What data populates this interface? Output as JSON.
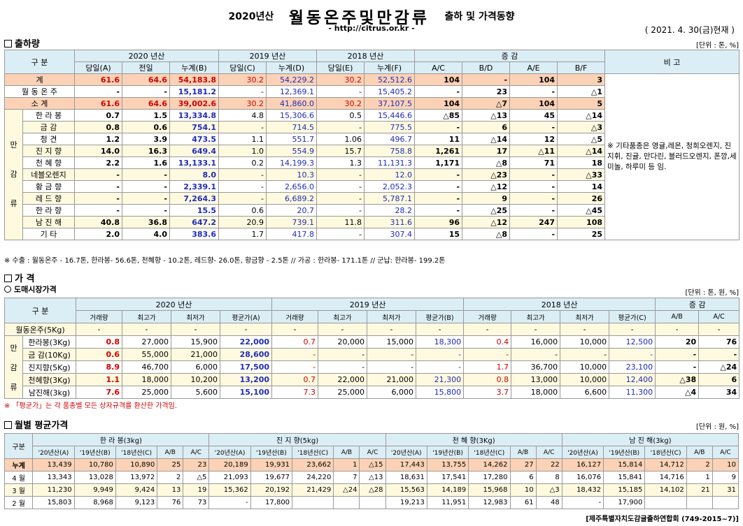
{
  "header": {
    "year": "2020년산",
    "title": "월동온주및만감류",
    "subtitle": "출하 및 가격동향",
    "url": "- http://citrus.or.kr -",
    "date": "( 2021. 4. 30(금)현재 )"
  },
  "shipment": {
    "section": "출하량",
    "unit": "[단위 : 톤, %]",
    "head1": [
      "구 분",
      "2020 년산",
      "2019 년산",
      "2018 년산",
      "증 감",
      "비 고"
    ],
    "head2": [
      "당일(A)",
      "전일",
      "누계(B)",
      "당일(C)",
      "누계(D)",
      "당일(E)",
      "누계(F)",
      "A/C",
      "B/D",
      "A/E",
      "B/F"
    ],
    "group_label": [
      "만",
      "감",
      "류"
    ],
    "remark": "※ 기타품종은 영귤,레몬, 청희오렌지, 진지휘, 진귤, 만다린, 블러드오렌지, 폰깡,세미놀, 하루미 등 임.",
    "rows": [
      {
        "name": "계",
        "cells": [
          "61.6",
          "64.6",
          "54,183.8",
          "30.2",
          "54,229.2",
          "30.2",
          "52,512.6",
          "104",
          "-",
          "104",
          "3"
        ]
      },
      {
        "name": "월 동 온 주",
        "cells": [
          "-",
          "-",
          "15,181.2",
          "-",
          "12,369.1",
          "-",
          "15,405.2",
          "-",
          "23",
          "-",
          "△1"
        ]
      },
      {
        "name": "소 계",
        "cells": [
          "61.6",
          "64.6",
          "39,002.6",
          "30.2",
          "41,860.0",
          "30.2",
          "37,107.5",
          "104",
          "△7",
          "104",
          "5"
        ]
      },
      {
        "name": "한 라 봉",
        "cells": [
          "0.7",
          "1.5",
          "13,334.8",
          "4.8",
          "15,306.6",
          "0.5",
          "15,446.6",
          "△85",
          "△13",
          "45",
          "△14"
        ]
      },
      {
        "name": "금 감",
        "cells": [
          "0.8",
          "0.6",
          "754.1",
          "-",
          "714.5",
          "-",
          "775.5",
          "-",
          "6",
          "-",
          "△3"
        ]
      },
      {
        "name": "청 견",
        "cells": [
          "1.2",
          "3.9",
          "473.5",
          "1.1",
          "551.7",
          "1.06",
          "496.7",
          "11",
          "△14",
          "12",
          "△5"
        ]
      },
      {
        "name": "진 지 향",
        "cells": [
          "14.0",
          "16.3",
          "649.4",
          "1.0",
          "554.9",
          "15.7",
          "758.8",
          "1,261",
          "17",
          "△11",
          "△14"
        ]
      },
      {
        "name": "천 혜 향",
        "cells": [
          "2.2",
          "1.6",
          "13,133.1",
          "0.2",
          "14,199.3",
          "1.3",
          "11,131.3",
          "1,171",
          "△8",
          "71",
          "18"
        ]
      },
      {
        "name": "네블오렌지",
        "cells": [
          "-",
          "-",
          "8.0",
          "-",
          "10.3",
          "-",
          "12.0",
          "-",
          "△23",
          "-",
          "△33"
        ]
      },
      {
        "name": "황 금 향",
        "cells": [
          "-",
          "-",
          "2,339.1",
          "-",
          "2,656.0",
          "-",
          "2,052.3",
          "-",
          "△12",
          "-",
          "14"
        ]
      },
      {
        "name": "레 드 향",
        "cells": [
          "-",
          "-",
          "7,264.3",
          "-",
          "6,689.2",
          "-",
          "5,787.1",
          "-",
          "9",
          "-",
          "26"
        ]
      },
      {
        "name": "한 라 향",
        "cells": [
          "-",
          "-",
          "15.5",
          "0.6",
          "20.7",
          "-",
          "28.2",
          "-",
          "△25",
          "-",
          "△45"
        ]
      },
      {
        "name": "남 진 해",
        "cells": [
          "40.8",
          "36.8",
          "647.2",
          "20.9",
          "739.1",
          "11.8",
          "311.6",
          "96",
          "△12",
          "247",
          "108"
        ]
      },
      {
        "name": "기 타",
        "cells": [
          "2.0",
          "4.0",
          "383.6",
          "1.7",
          "417.8",
          "-",
          "307.4",
          "15",
          "△8",
          "-",
          "25"
        ]
      }
    ],
    "note": "※ 수출 : 월동온주 - 16.7톤, 한라봉- 56.6톤, 천혜향 - 10.2톤, 레드향- 26.0톤, 황금향 - 2.5톤 // 가공 : 한라봉- 171.1톤 // 군납: 한라봉- 199.2톤"
  },
  "price": {
    "section": "가 격",
    "sub": "도매시장가격",
    "unit": "[단위 : 톤, 원, %]",
    "head1": [
      "구 분",
      "2020 년산",
      "2019 년산",
      "2018 년산",
      "증 감"
    ],
    "head2": [
      "거래량",
      "최고가",
      "최저가",
      "평균가(A)",
      "거래량",
      "최고가",
      "최저가",
      "평균가(B)",
      "거래량",
      "최고가",
      "최저가",
      "평균가(C)",
      "A/B",
      "A/C"
    ],
    "group_label": [
      "만",
      "감",
      "류"
    ],
    "rows": [
      {
        "name": "월동온주(5Kg)",
        "cells": [
          "-",
          "-",
          "-",
          "-",
          "-",
          "-",
          "-",
          "-",
          "-",
          "-",
          "-",
          "-",
          "-",
          "-"
        ]
      },
      {
        "name": "한라봉(3Kg)",
        "cells": [
          "0.8",
          "27,000",
          "15,900",
          "22,000",
          "0.7",
          "20,000",
          "15,000",
          "18,300",
          "0.4",
          "16,000",
          "10,000",
          "12,500",
          "20",
          "76"
        ]
      },
      {
        "name": "금 감(10Kg)",
        "cells": [
          "0.6",
          "55,000",
          "21,000",
          "28,600",
          "-",
          "-",
          "-",
          "-",
          "-",
          "-",
          "-",
          "-",
          "-",
          "-"
        ]
      },
      {
        "name": "진지향(5Kg)",
        "cells": [
          "8.9",
          "46,700",
          "6,000",
          "17,500",
          "-",
          "-",
          "-",
          "-",
          "1.7",
          "36,700",
          "10,000",
          "23,100",
          "-",
          "△24"
        ]
      },
      {
        "name": "천혜향(3Kg)",
        "cells": [
          "1.1",
          "18,000",
          "10,200",
          "13,200",
          "0.7",
          "22,000",
          "21,000",
          "21,300",
          "0.8",
          "13,000",
          "10,000",
          "12,400",
          "△38",
          "6"
        ]
      },
      {
        "name": "남진해(3kg)",
        "cells": [
          "7.6",
          "25,000",
          "5,600",
          "15,100",
          "7.3",
          "25,000",
          "6,000",
          "15,800",
          "3.7",
          "18,000",
          "6,600",
          "11,300",
          "△4",
          "34"
        ]
      }
    ],
    "note": "※ 「평균가」는 각 품종별 모든 상자규격를 환산한 가격임."
  },
  "monthly": {
    "section": "월별 평균가격",
    "unit": "[단위 : 원, %]",
    "head1": [
      "구분",
      "한 라 봉(3kg)",
      "진 지 향(5kg)",
      "천 혜 향(3Kg)",
      "남 진 해(3kg)"
    ],
    "head2": [
      "'20년산(A)",
      "'19년산(B)",
      "'18년산(C)",
      "A/B",
      "A/C",
      "'20년산(A)",
      "'19년산(B)",
      "'18년산(C)",
      "A/B",
      "A/C",
      "'20년산(A)",
      "'19년산(B)",
      "'18년산(C)",
      "A/B",
      "A/C",
      "'20년산(A)",
      "'19년산(B)",
      "'18년산(C)",
      "A/B",
      "A/C"
    ],
    "rows": [
      {
        "name": "누계",
        "cells": [
          "13,439",
          "10,780",
          "10,890",
          "25",
          "23",
          "20,189",
          "19,931",
          "23,662",
          "1",
          "△15",
          "17,443",
          "13,755",
          "14,262",
          "27",
          "22",
          "16,127",
          "15,814",
          "14,712",
          "2",
          "10"
        ]
      },
      {
        "name": "4 월",
        "cells": [
          "13,343",
          "13,028",
          "13,972",
          "2",
          "△5",
          "21,093",
          "19,677",
          "24,220",
          "7",
          "△13",
          "18,631",
          "17,541",
          "17,280",
          "6",
          "8",
          "16,076",
          "15,841",
          "14,716",
          "1",
          "9"
        ]
      },
      {
        "name": "3 월",
        "cells": [
          "11,230",
          "9,949",
          "9,424",
          "13",
          "19",
          "15,362",
          "20,192",
          "21,429",
          "△24",
          "△28",
          "15,563",
          "14,189",
          "15,968",
          "10",
          "△3",
          "18,432",
          "15,185",
          "14,102",
          "21",
          "31"
        ]
      },
      {
        "name": "2 월",
        "cells": [
          "15,803",
          "8,968",
          "9,123",
          "76",
          "73",
          "-",
          "17,800",
          "",
          "",
          "",
          "19,213",
          "11,951",
          "12,983",
          "61",
          "48",
          "-",
          "17,900",
          "",
          "",
          ""
        ]
      }
    ]
  },
  "footer": "[제주특별자치도감귤출하연합회 (749-2015~7)]"
}
